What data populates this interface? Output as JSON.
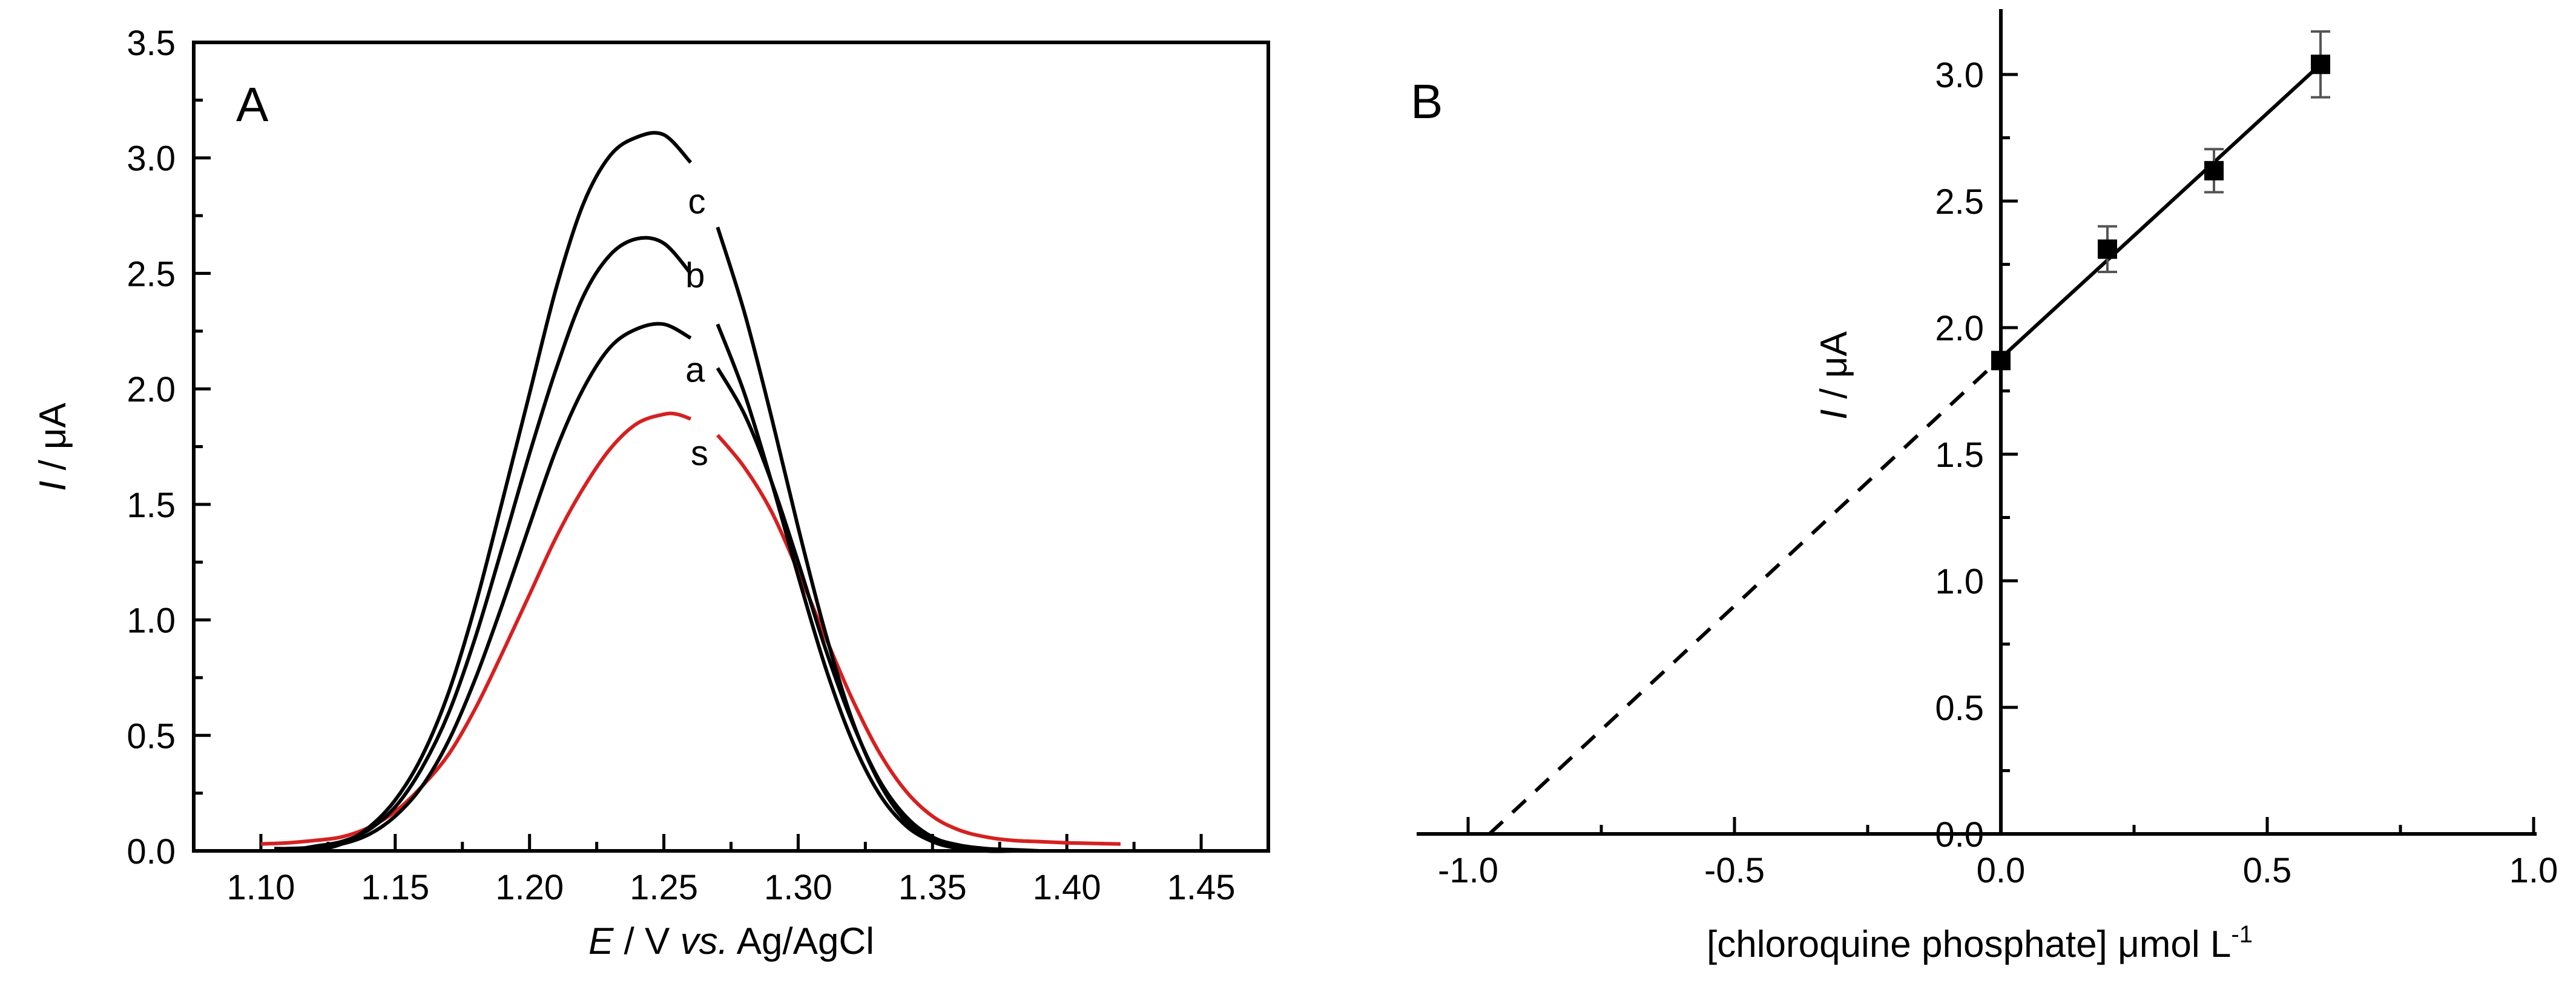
{
  "chart_data": [
    {
      "type": "line",
      "panel_label": "A",
      "title": "",
      "xlabel": {
        "italic": "E",
        "rest": " / V ",
        "vs": "vs.",
        "ref": " Ag/AgCl"
      },
      "ylabel": {
        "italic": "I",
        "rest": " / μA"
      },
      "xlim": [
        1.075,
        1.475
      ],
      "ylim": [
        0,
        3.5
      ],
      "xticks": [
        1.1,
        1.15,
        1.2,
        1.25,
        1.3,
        1.35,
        1.4,
        1.45
      ],
      "xtick_labels": [
        "1.10",
        "1.15",
        "1.20",
        "1.25",
        "1.30",
        "1.35",
        "1.40",
        "1.45"
      ],
      "yticks": [
        0.0,
        0.5,
        1.0,
        1.5,
        2.0,
        2.5,
        3.0,
        3.5
      ],
      "ytick_labels": [
        "0.0",
        "0.5",
        "1.0",
        "1.5",
        "2.0",
        "2.5",
        "3.0",
        "3.5"
      ],
      "series": [
        {
          "name": "s",
          "color": "#d62020",
          "x": [
            1.1,
            1.11,
            1.12,
            1.13,
            1.14,
            1.15,
            1.16,
            1.17,
            1.18,
            1.19,
            1.2,
            1.21,
            1.22,
            1.23,
            1.24,
            1.25,
            1.255,
            1.26,
            1.27,
            1.28,
            1.29,
            1.3,
            1.31,
            1.32,
            1.33,
            1.34,
            1.35,
            1.36,
            1.37,
            1.38,
            1.39,
            1.4,
            1.42
          ],
          "y": [
            0.03,
            0.035,
            0.045,
            0.06,
            0.1,
            0.17,
            0.28,
            0.42,
            0.62,
            0.86,
            1.11,
            1.36,
            1.57,
            1.74,
            1.85,
            1.89,
            1.89,
            1.87,
            1.8,
            1.66,
            1.47,
            1.21,
            0.93,
            0.66,
            0.43,
            0.26,
            0.15,
            0.09,
            0.06,
            0.045,
            0.04,
            0.035,
            0.03
          ],
          "gap_x": 1.265,
          "label_x": 1.26,
          "label_y": 1.67
        },
        {
          "name": "a",
          "color": "#000000",
          "x": [
            1.105,
            1.11,
            1.12,
            1.13,
            1.14,
            1.15,
            1.16,
            1.17,
            1.18,
            1.19,
            1.2,
            1.21,
            1.22,
            1.23,
            1.24,
            1.25,
            1.26,
            1.27,
            1.28,
            1.29,
            1.3,
            1.31,
            1.32,
            1.33,
            1.34,
            1.35,
            1.36,
            1.37,
            1.38,
            1.39
          ],
          "y": [
            0.01,
            0.01,
            0.015,
            0.03,
            0.07,
            0.15,
            0.28,
            0.48,
            0.75,
            1.07,
            1.41,
            1.74,
            2.0,
            2.18,
            2.26,
            2.28,
            2.22,
            2.09,
            1.89,
            1.6,
            1.25,
            0.88,
            0.56,
            0.31,
            0.15,
            0.06,
            0.025,
            0.01,
            0.005,
            0.0
          ],
          "gap_x": 1.265,
          "label_x": 1.258,
          "label_y": 2.03
        },
        {
          "name": "b",
          "color": "#000000",
          "x": [
            1.115,
            1.12,
            1.13,
            1.14,
            1.15,
            1.16,
            1.17,
            1.18,
            1.19,
            1.2,
            1.21,
            1.22,
            1.23,
            1.24,
            1.25,
            1.26,
            1.27,
            1.28,
            1.29,
            1.3,
            1.31,
            1.32,
            1.33,
            1.34,
            1.35,
            1.36,
            1.37,
            1.38,
            1.385
          ],
          "y": [
            0.01,
            0.02,
            0.04,
            0.09,
            0.19,
            0.36,
            0.6,
            0.93,
            1.32,
            1.72,
            2.09,
            2.4,
            2.58,
            2.65,
            2.63,
            2.5,
            2.28,
            1.98,
            1.6,
            1.19,
            0.8,
            0.48,
            0.25,
            0.11,
            0.04,
            0.01,
            0.0,
            0.0,
            0.0
          ],
          "gap_x": 1.265,
          "label_x": 1.258,
          "label_y": 2.44
        },
        {
          "name": "c",
          "color": "#000000",
          "x": [
            1.12,
            1.13,
            1.14,
            1.15,
            1.16,
            1.17,
            1.18,
            1.19,
            1.2,
            1.21,
            1.22,
            1.23,
            1.24,
            1.25,
            1.26,
            1.27,
            1.28,
            1.29,
            1.3,
            1.31,
            1.32,
            1.33,
            1.34,
            1.35,
            1.36,
            1.37,
            1.38
          ],
          "y": [
            0.0,
            0.03,
            0.1,
            0.22,
            0.41,
            0.69,
            1.07,
            1.52,
            1.98,
            2.44,
            2.8,
            3.01,
            3.09,
            3.1,
            2.98,
            2.7,
            2.33,
            1.88,
            1.4,
            0.95,
            0.57,
            0.3,
            0.13,
            0.05,
            0.015,
            0.0,
            0.0
          ],
          "gap_x": 1.265,
          "label_x": 1.259,
          "label_y": 2.76
        }
      ],
      "curve_labels": [
        "s",
        "a",
        "b",
        "c"
      ]
    },
    {
      "type": "scatter",
      "panel_label": "B",
      "title": "",
      "xlabel": {
        "main": "[chloroquine phosphate] μmol L",
        "sup": "-1"
      },
      "ylabel": {
        "italic": "I",
        "rest": " / μA"
      },
      "xlim": [
        -1.1,
        1.0
      ],
      "ylim": [
        0,
        3.25
      ],
      "xticks": [
        -1.0,
        -0.5,
        0.0,
        0.5,
        1.0
      ],
      "xtick_labels": [
        "-1.0",
        "-0.5",
        "0.0",
        "0.5",
        "1.0"
      ],
      "yticks": [
        0.0,
        0.5,
        1.0,
        1.5,
        2.0,
        2.5,
        3.0
      ],
      "ytick_labels": [
        "0.0",
        "0.5",
        "1.0",
        "1.5",
        "2.0",
        "2.5",
        "3.0"
      ],
      "points": [
        {
          "x": 0.0,
          "y": 1.87,
          "err": 0.0
        },
        {
          "x": 0.2,
          "y": 2.31,
          "err": 0.09
        },
        {
          "x": 0.4,
          "y": 2.62,
          "err": 0.085
        },
        {
          "x": 0.6,
          "y": 3.04,
          "err": 0.13
        }
      ],
      "fit_line": {
        "x_start": 0.0,
        "x_end": 0.6,
        "y_start": 1.88,
        "y_end": 3.04
      },
      "extrapolation": {
        "x_start": -0.96,
        "y_start": 0.0,
        "x_end": 0.0,
        "y_end": 1.88,
        "style": "dashed"
      }
    }
  ]
}
